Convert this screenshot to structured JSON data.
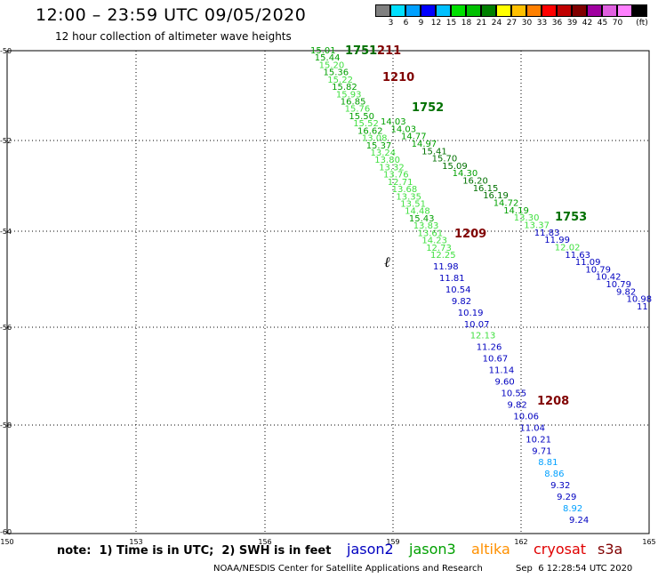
{
  "header": {
    "title": "12:00 – 23:59 UTC 09/05/2020",
    "subtitle": "12 hour collection of altimeter wave heights"
  },
  "legend": {
    "unit": "(ft)",
    "colors": [
      "#808080",
      "#00e0ff",
      "#00a0ff",
      "#0000ff",
      "#00c0ff",
      "#00e000",
      "#00c000",
      "#008000",
      "#ffff00",
      "#ffc000",
      "#ff8000",
      "#ff0000",
      "#c00000",
      "#800000",
      "#a000a0",
      "#e060e0",
      "#ff80ff",
      "#000000"
    ],
    "labels": [
      "3",
      "6",
      "9",
      "12",
      "15",
      "18",
      "21",
      "24",
      "27",
      "30",
      "33",
      "36",
      "39",
      "42",
      "45",
      "70"
    ]
  },
  "map": {
    "lon_ticks": [
      "150",
      "153",
      "156",
      "159",
      "162",
      "165"
    ],
    "lat_ticks": [
      "-50",
      "-52",
      "-54",
      "-56",
      "-58",
      "-60"
    ],
    "colors": {
      "light_green": "#40e040",
      "green": "#00a000",
      "dark_green": "#007000",
      "blue": "#0000c0",
      "cyan": "#00a0ff",
      "dark_red": "#800000"
    },
    "passes": [
      {
        "label": "1211",
        "color": "dark_red"
      },
      {
        "label": "1751",
        "color": "dark_green"
      },
      {
        "label": "1210",
        "color": "dark_red"
      },
      {
        "label": "1752",
        "color": "dark_green"
      },
      {
        "label": "1753",
        "color": "dark_green"
      },
      {
        "label": "1209",
        "color": "dark_red"
      },
      {
        "label": "1208",
        "color": "dark_red"
      }
    ],
    "track_a": [
      {
        "v": "15.01",
        "c": "green"
      },
      {
        "v": "15.44",
        "c": "green"
      },
      {
        "v": "15.20",
        "c": "light_green"
      },
      {
        "v": "15.36",
        "c": "green"
      },
      {
        "v": "15.22",
        "c": "light_green"
      },
      {
        "v": "15.82",
        "c": "green"
      },
      {
        "v": "15.93",
        "c": "light_green"
      },
      {
        "v": "16.85",
        "c": "green"
      },
      {
        "v": "15.76",
        "c": "light_green"
      },
      {
        "v": "15.50",
        "c": "green"
      },
      {
        "v": "15.52",
        "c": "light_green"
      },
      {
        "v": "16.62",
        "c": "green"
      },
      {
        "v": "13.08",
        "c": "light_green"
      },
      {
        "v": "15.37",
        "c": "green"
      },
      {
        "v": "13.24",
        "c": "light_green"
      },
      {
        "v": "13.80",
        "c": "light_green"
      },
      {
        "v": "13.32",
        "c": "light_green"
      },
      {
        "v": "13.76",
        "c": "light_green"
      },
      {
        "v": "12.71",
        "c": "light_green"
      },
      {
        "v": "13.68",
        "c": "light_green"
      },
      {
        "v": "13.35",
        "c": "light_green"
      },
      {
        "v": "13.51",
        "c": "light_green"
      },
      {
        "v": "14.48",
        "c": "light_green"
      },
      {
        "v": "15.43",
        "c": "green"
      },
      {
        "v": "13.83",
        "c": "light_green"
      },
      {
        "v": "13.61",
        "c": "light_green"
      },
      {
        "v": "14.23",
        "c": "light_green"
      },
      {
        "v": "12.73",
        "c": "light_green"
      },
      {
        "v": "12.25",
        "c": "light_green"
      }
    ],
    "track_b": [
      {
        "v": "14.03",
        "c": "green"
      },
      {
        "v": "14.03",
        "c": "green"
      },
      {
        "v": "14.77",
        "c": "green"
      },
      {
        "v": "14.97",
        "c": "green"
      },
      {
        "v": "15.41",
        "c": "dark_green"
      },
      {
        "v": "15.70",
        "c": "dark_green"
      },
      {
        "v": "15.09",
        "c": "dark_green"
      },
      {
        "v": "14.30",
        "c": "green"
      },
      {
        "v": "16.20",
        "c": "dark_green"
      },
      {
        "v": "16.15",
        "c": "dark_green"
      },
      {
        "v": "16.19",
        "c": "dark_green"
      },
      {
        "v": "14.72",
        "c": "green"
      },
      {
        "v": "14.19",
        "c": "green"
      },
      {
        "v": "13.30",
        "c": "light_green"
      },
      {
        "v": "13.37",
        "c": "light_green"
      },
      {
        "v": "11.83",
        "c": "blue"
      },
      {
        "v": "11.99",
        "c": "blue"
      },
      {
        "v": "12.02",
        "c": "light_green"
      },
      {
        "v": "11.63",
        "c": "blue"
      },
      {
        "v": "11.09",
        "c": "blue"
      },
      {
        "v": "10.79",
        "c": "blue"
      },
      {
        "v": "10.42",
        "c": "blue"
      },
      {
        "v": "10.79",
        "c": "blue"
      },
      {
        "v": "9.82",
        "c": "blue"
      },
      {
        "v": "10.98",
        "c": "blue"
      },
      {
        "v": "11",
        "c": "blue"
      }
    ],
    "track_c": [
      {
        "v": "11.98",
        "c": "blue"
      },
      {
        "v": "11.81",
        "c": "blue"
      },
      {
        "v": "10.54",
        "c": "blue"
      },
      {
        "v": "9.82",
        "c": "blue"
      },
      {
        "v": "10.19",
        "c": "blue"
      },
      {
        "v": "10.07",
        "c": "blue"
      },
      {
        "v": "12.13",
        "c": "light_green"
      },
      {
        "v": "11.26",
        "c": "blue"
      },
      {
        "v": "10.67",
        "c": "blue"
      },
      {
        "v": "11.14",
        "c": "blue"
      },
      {
        "v": "9.60",
        "c": "blue"
      },
      {
        "v": "10.55",
        "c": "blue"
      },
      {
        "v": "9.82",
        "c": "blue"
      },
      {
        "v": "10.06",
        "c": "blue"
      },
      {
        "v": "11.04",
        "c": "blue"
      },
      {
        "v": "10.21",
        "c": "blue"
      },
      {
        "v": "9.71",
        "c": "blue"
      },
      {
        "v": "8.81",
        "c": "cyan"
      },
      {
        "v": "8.86",
        "c": "cyan"
      },
      {
        "v": "9.32",
        "c": "blue"
      },
      {
        "v": "9.29",
        "c": "blue"
      },
      {
        "v": "8.92",
        "c": "cyan"
      },
      {
        "v": "9.24",
        "c": "blue"
      }
    ]
  },
  "footer": {
    "note": "note:  1) Time is in UTC;  2) SWH is in feet",
    "satellites": [
      {
        "name": "jason2",
        "color": "#0000c0"
      },
      {
        "name": "jason3",
        "color": "#00a000"
      },
      {
        "name": "altika",
        "color": "#ff9000"
      },
      {
        "name": "cryosat",
        "color": "#e00000"
      },
      {
        "name": "s3a",
        "color": "#800000"
      }
    ],
    "credit": "NOAA/NESDIS Center for Satellite Applications and Research",
    "timestamp": "Sep  6 12:28:54 UTC 2020"
  }
}
